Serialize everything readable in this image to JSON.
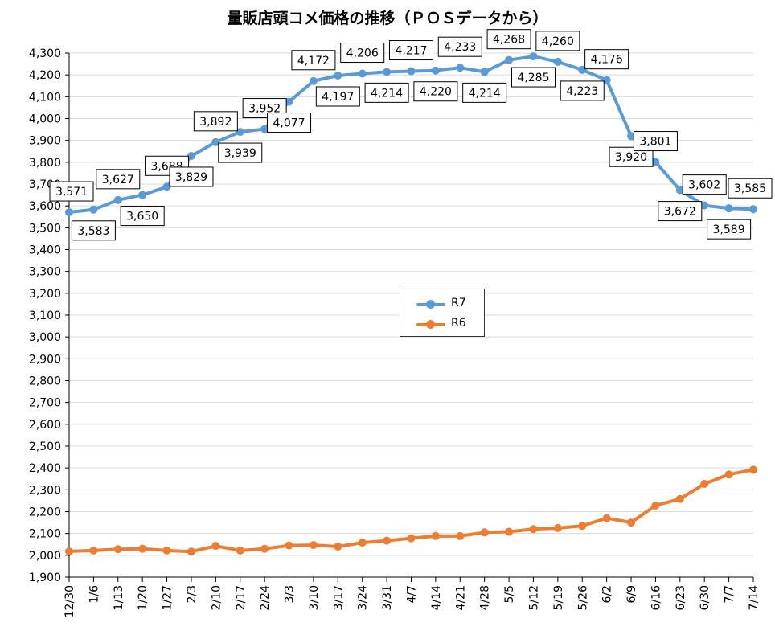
{
  "chart_data": {
    "type": "line",
    "title": "量販店頭コメ価格の推移（ＰＯＳデータから）",
    "categories": [
      "12/30",
      "1/6",
      "1/13",
      "1/20",
      "1/27",
      "2/3",
      "2/10",
      "2/17",
      "2/24",
      "3/3",
      "3/10",
      "3/17",
      "3/24",
      "3/31",
      "4/7",
      "4/14",
      "4/21",
      "4/28",
      "5/5",
      "5/12",
      "5/19",
      "5/26",
      "6/2",
      "6/9",
      "6/16",
      "6/23",
      "6/30",
      "7/7",
      "7/14"
    ],
    "ylim": [
      1900,
      4300
    ],
    "ytick_step": 100,
    "ytick_labels": [
      "1,900",
      "2,000",
      "2,100",
      "2,200",
      "2,300",
      "2,400",
      "2,500",
      "2,600",
      "2,700",
      "2,800",
      "2,900",
      "3,000",
      "3,100",
      "3,200",
      "3,300",
      "3,400",
      "3,500",
      "3,600",
      "3,700",
      "3,800",
      "3,900",
      "4,000",
      "4,100",
      "4,200",
      "4,300"
    ],
    "grid": "horizontal",
    "legend": "center",
    "series": [
      {
        "name": "R7",
        "color": "#5b9bd5",
        "values": [
          3571,
          3583,
          3627,
          3650,
          3688,
          3829,
          3892,
          3939,
          3952,
          4077,
          4172,
          4197,
          4206,
          4214,
          4217,
          4220,
          4233,
          4214,
          4268,
          4285,
          4260,
          4223,
          4176,
          3920,
          3801,
          3672,
          3602,
          3589,
          3585
        ],
        "data_labels": [
          "3,571",
          "3,583",
          "3,627",
          "3,650",
          "3,688",
          "3,829",
          "3,892",
          "3,939",
          "3,952",
          "4,077",
          "4,172",
          "4,197",
          "4,206",
          "4,214",
          "4,217",
          "4,220",
          "4,233",
          "4,214",
          "4,268",
          "4,285",
          "4,260",
          "4,223",
          "4,176",
          "3,920",
          "3,801",
          "3,672",
          "3,602",
          "3,589",
          "3,585"
        ]
      },
      {
        "name": "R6",
        "color": "#ed7d31",
        "values": [
          2018,
          2022,
          2028,
          2030,
          2022,
          2017,
          2043,
          2022,
          2030,
          2045,
          2047,
          2040,
          2058,
          2067,
          2078,
          2088,
          2088,
          2105,
          2108,
          2120,
          2125,
          2135,
          2170,
          2150,
          2228,
          2258,
          2327,
          2370,
          2392
        ]
      }
    ]
  }
}
